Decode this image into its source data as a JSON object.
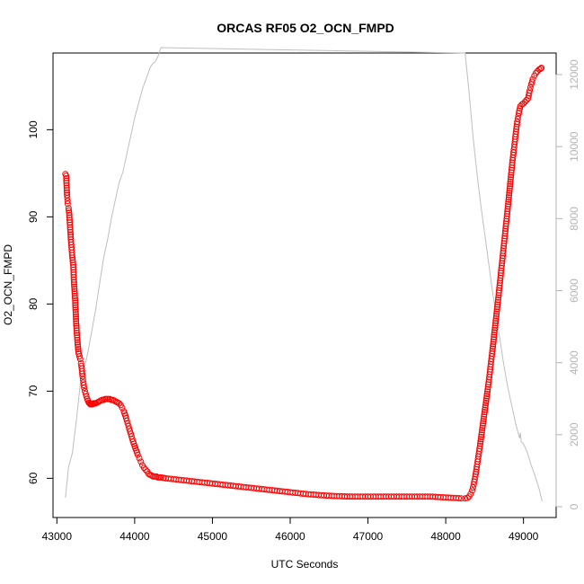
{
  "chart_data": {
    "type": "scatter",
    "title": "ORCAS RF05 O2_OCN_FMPD",
    "xlabel": "UTC Seconds",
    "ylabel": "O2_OCN_FMPD",
    "xlim": [
      42950,
      49420
    ],
    "ylim": [
      55.5,
      108.8
    ],
    "y2lim": [
      -300,
      12600
    ],
    "x_ticks": [
      43000,
      44000,
      45000,
      46000,
      47000,
      48000,
      49000
    ],
    "y_ticks": [
      60,
      70,
      80,
      90,
      100
    ],
    "y2_ticks": [
      0,
      2000,
      4000,
      6000,
      8000,
      10000,
      12000
    ],
    "grid": false,
    "colors": {
      "series": "#ff0000",
      "secondary": "#bebebe",
      "axis": "#000000",
      "secondary_axis": "#b4b4b4"
    },
    "series": [
      {
        "axis": "left",
        "style": "points",
        "x": [
          43110,
          43120,
          43130,
          43140,
          43150,
          43160,
          43170,
          43180,
          43190,
          43200,
          43210,
          43220,
          43235,
          43250,
          43265,
          43280,
          43290,
          43300,
          43310,
          43320,
          43330,
          43340,
          43350,
          43360,
          43370,
          43380,
          43390,
          43400,
          43410,
          43420,
          43430,
          43440,
          43450,
          43460,
          43470,
          43480,
          43490,
          43500,
          43520,
          43540,
          43560,
          43580,
          43600,
          43620,
          43640,
          43660,
          43680,
          43700,
          43720,
          43740,
          43760,
          43780,
          43800,
          43820,
          43840,
          43860,
          43880,
          43900,
          43920,
          43940,
          43960,
          43980,
          44000,
          44020,
          44040,
          44060,
          44080,
          44100,
          44120,
          44140,
          44160,
          44180,
          44200,
          44220,
          44240,
          44260,
          44280,
          44300,
          44320,
          44340,
          44400,
          44500,
          44600,
          44700,
          44800,
          44900,
          45000,
          45200,
          45400,
          45600,
          45800,
          46000,
          46200,
          46400,
          46600,
          46800,
          47000,
          47200,
          47400,
          47600,
          47800,
          48000,
          48100,
          48200,
          48250,
          48280,
          48300,
          48320,
          48340,
          48360,
          48380,
          48400,
          48420,
          48440,
          48460,
          48480,
          48500,
          48520,
          48540,
          48560,
          48580,
          48600,
          48620,
          48640,
          48660,
          48680,
          48700,
          48720,
          48740,
          48760,
          48780,
          48800,
          48820,
          48840,
          48860,
          48880,
          48900,
          48920,
          48940,
          48960,
          48980,
          49000,
          49020,
          49040,
          49060,
          49080,
          49100,
          49120,
          49140,
          49160,
          49180,
          49200,
          49220,
          49230
        ],
        "y": [
          94.9,
          94.7,
          92.5,
          91.5,
          91.0,
          90.2,
          88.8,
          87.4,
          86.2,
          85.3,
          84.5,
          82.5,
          80.4,
          77.5,
          75.6,
          74.3,
          74.0,
          73.7,
          73.2,
          72.6,
          71.7,
          71.0,
          70.4,
          70.0,
          69.7,
          69.4,
          69.1,
          68.9,
          68.7,
          68.6,
          68.5,
          68.5,
          68.5,
          68.5,
          68.6,
          68.6,
          68.6,
          68.6,
          68.7,
          68.8,
          68.9,
          69.0,
          69.0,
          69.1,
          69.1,
          69.1,
          69.1,
          69.0,
          69.0,
          68.9,
          68.8,
          68.7,
          68.6,
          68.4,
          68.1,
          67.7,
          67.2,
          66.6,
          66.0,
          65.4,
          64.8,
          64.2,
          63.7,
          63.2,
          62.7,
          62.3,
          61.9,
          61.5,
          61.2,
          61.0,
          60.8,
          60.5,
          60.4,
          60.3,
          60.2,
          60.2,
          60.2,
          60.1,
          60.1,
          60.1,
          60.0,
          59.9,
          59.8,
          59.7,
          59.6,
          59.5,
          59.4,
          59.2,
          59.0,
          58.8,
          58.6,
          58.4,
          58.2,
          58.05,
          57.95,
          57.9,
          57.9,
          57.9,
          57.9,
          57.9,
          57.9,
          57.8,
          57.75,
          57.7,
          57.7,
          57.75,
          57.9,
          58.2,
          58.6,
          59.3,
          60.2,
          61.3,
          62.5,
          63.7,
          65.0,
          66.3,
          67.6,
          68.9,
          70.2,
          71.6,
          73.1,
          74.6,
          76.2,
          77.8,
          79.4,
          81.0,
          82.7,
          84.4,
          86.1,
          87.8,
          89.5,
          91.2,
          93.0,
          94.8,
          96.5,
          98.0,
          99.5,
          100.9,
          101.9,
          102.7,
          102.9,
          103.0,
          103.2,
          103.4,
          103.6,
          104.5,
          105.2,
          105.8,
          106.2,
          106.5,
          106.7,
          106.9,
          107.0,
          107.1
        ]
      },
      {
        "axis": "right",
        "style": "line",
        "x": [
          43110,
          43150,
          43200,
          43250,
          43300,
          43350,
          43400,
          43450,
          43500,
          43550,
          43600,
          43650,
          43700,
          43750,
          43800,
          43850,
          43900,
          43950,
          44000,
          44050,
          44100,
          44150,
          44200,
          44230,
          44260,
          44300,
          44330,
          44340,
          48250,
          48300,
          48350,
          48400,
          48450,
          48500,
          48550,
          48600,
          48650,
          48700,
          48750,
          48800,
          48850,
          48900,
          48950,
          48960,
          48970,
          49000,
          49050,
          49100,
          49150,
          49200,
          49240
        ],
        "y": [
          250,
          1100,
          1500,
          2400,
          3400,
          3800,
          4300,
          4900,
          5500,
          6200,
          6900,
          7400,
          8000,
          8500,
          9000,
          9300,
          9800,
          10300,
          10800,
          11200,
          11600,
          11900,
          12200,
          12300,
          12350,
          12500,
          12700,
          12750,
          12600,
          11500,
          10300,
          9300,
          8400,
          7600,
          6800,
          6000,
          5300,
          4600,
          3900,
          3300,
          2800,
          2300,
          1900,
          2050,
          1800,
          1750,
          1500,
          1150,
          850,
          500,
          150
        ]
      }
    ]
  }
}
